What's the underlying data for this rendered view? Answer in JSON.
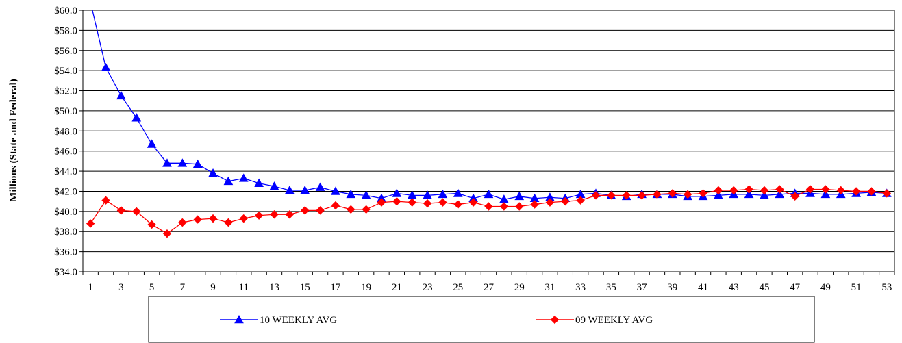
{
  "chart_data": {
    "type": "line",
    "title": "",
    "xlabel": "",
    "ylabel": "Millions (State and Federal)",
    "ylim": [
      34,
      60
    ],
    "y_tick_step": 2,
    "y_tick_prefix": "$",
    "y_tick_decimals": 1,
    "x": [
      1,
      2,
      3,
      4,
      5,
      6,
      7,
      8,
      9,
      10,
      11,
      12,
      13,
      14,
      15,
      16,
      17,
      18,
      19,
      20,
      21,
      22,
      23,
      24,
      25,
      26,
      27,
      28,
      29,
      30,
      31,
      32,
      33,
      34,
      35,
      36,
      37,
      38,
      39,
      40,
      41,
      42,
      43,
      44,
      45,
      46,
      47,
      48,
      49,
      50,
      51,
      52,
      53
    ],
    "x_tick_labels": [
      "1",
      "3",
      "5",
      "7",
      "9",
      "11",
      "13",
      "15",
      "17",
      "19",
      "21",
      "23",
      "25",
      "27",
      "29",
      "31",
      "33",
      "35",
      "37",
      "39",
      "41",
      "43",
      "45",
      "47",
      "49",
      "51",
      "53"
    ],
    "grid": true,
    "legend_position": "bottom",
    "series": [
      {
        "name": "10 WEEKLY AVG",
        "color": "#0000FF",
        "marker": "triangle",
        "values": [
          60.8,
          54.3,
          51.5,
          49.3,
          46.7,
          44.8,
          44.8,
          44.7,
          43.8,
          43.0,
          43.3,
          42.8,
          42.5,
          42.1,
          42.1,
          42.4,
          42.0,
          41.7,
          41.6,
          41.3,
          41.8,
          41.6,
          41.6,
          41.7,
          41.8,
          41.3,
          41.7,
          41.2,
          41.5,
          41.3,
          41.4,
          41.3,
          41.7,
          41.8,
          41.6,
          41.5,
          41.7,
          41.7,
          41.7,
          41.5,
          41.5,
          41.6,
          41.7,
          41.7,
          41.6,
          41.7,
          41.8,
          41.8,
          41.7,
          41.7,
          41.8,
          41.9,
          41.8
        ]
      },
      {
        "name": "09 WEEKLY AVG",
        "color": "#FF0000",
        "marker": "diamond",
        "values": [
          38.8,
          41.1,
          40.1,
          40.0,
          38.7,
          37.8,
          38.9,
          39.2,
          39.3,
          38.9,
          39.3,
          39.6,
          39.7,
          39.7,
          40.1,
          40.1,
          40.6,
          40.2,
          40.2,
          40.9,
          41.0,
          40.9,
          40.8,
          40.9,
          40.7,
          40.9,
          40.5,
          40.5,
          40.5,
          40.7,
          40.9,
          41.0,
          41.1,
          41.6,
          41.6,
          41.6,
          41.6,
          41.7,
          41.8,
          41.7,
          41.8,
          42.1,
          42.1,
          42.2,
          42.1,
          42.2,
          41.5,
          42.2,
          42.2,
          42.1,
          42.0,
          42.0,
          41.8
        ]
      }
    ]
  }
}
